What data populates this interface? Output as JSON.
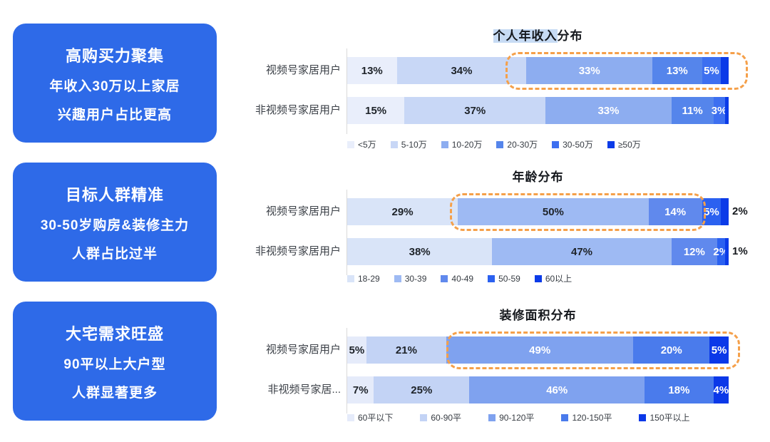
{
  "sidebar": {
    "accent_color": "#2E6AE8",
    "cards": [
      {
        "title": "高购买力聚集",
        "line1": "年收入30万以上家居",
        "line2": "兴趣用户占比更高"
      },
      {
        "title": "目标人群精准",
        "line1": "30-50岁购房&装修主力",
        "line2": "人群占比过半"
      },
      {
        "title": "大宅需求旺盛",
        "line1": "90平以上大户型",
        "line2": "人群显著更多"
      }
    ]
  },
  "chart_data": [
    {
      "type": "bar",
      "orientation": "horizontal",
      "stacked": true,
      "title": "个人年收入分布",
      "title_selection_highlight": "个人年收入",
      "xlim": [
        0,
        100
      ],
      "unit": "%",
      "legend_position": "bottom-left",
      "legend": [
        "<5万",
        "5-10万",
        "10-20万",
        "20-30万",
        "30-50万",
        "≥50万"
      ],
      "colors": [
        "#E9EEFB",
        "#C8D7F6",
        "#8DADF0",
        "#5585EB",
        "#3D6FF0",
        "#0B3BE8"
      ],
      "categories": [
        "视频号家居用户",
        "非视频号家居用户"
      ],
      "series": [
        {
          "name": "视频号家居用户",
          "values": [
            13,
            34,
            33,
            13,
            5,
            2
          ],
          "labels": [
            "13%",
            "34%",
            "33%",
            "13%",
            "5%",
            ""
          ],
          "label_styles": [
            "dark",
            "dark",
            "light",
            "light",
            "light",
            "none"
          ]
        },
        {
          "name": "非视频号家居用户",
          "values": [
            15,
            37,
            33,
            11,
            3,
            1
          ],
          "labels": [
            "15%",
            "37%",
            "33%",
            "11%",
            "3%",
            ""
          ],
          "label_styles": [
            "dark",
            "dark",
            "light",
            "light",
            "light",
            "none"
          ]
        }
      ],
      "highlight_box": {
        "start_pct": 41.5,
        "end_pct": 105,
        "color": "#F5A04A"
      }
    },
    {
      "type": "bar",
      "orientation": "horizontal",
      "stacked": true,
      "title": "年龄分布",
      "xlim": [
        0,
        100
      ],
      "unit": "%",
      "legend_position": "bottom-left",
      "legend": [
        "18-29",
        "30-39",
        "40-49",
        "50-59",
        "60以上"
      ],
      "colors": [
        "#D9E4F8",
        "#9EBAF3",
        "#6089ED",
        "#2B61F0",
        "#0B3BE8"
      ],
      "categories": [
        "视频号家居用户",
        "非视频号家居用户"
      ],
      "series": [
        {
          "name": "视频号家居用户",
          "values": [
            29,
            50,
            14,
            5,
            2
          ],
          "labels": [
            "29%",
            "50%",
            "14%",
            "5%",
            "2%"
          ],
          "label_styles": [
            "dark",
            "dark",
            "light",
            "light",
            "outside"
          ]
        },
        {
          "name": "非视频号家居用户",
          "values": [
            38,
            47,
            12,
            2,
            1
          ],
          "labels": [
            "38%",
            "47%",
            "12%",
            "2%",
            "1%"
          ],
          "label_styles": [
            "dark",
            "dark",
            "light",
            "light",
            "outside"
          ]
        }
      ],
      "highlight_box": {
        "start_pct": 27,
        "end_pct": 94,
        "color": "#F5A04A"
      }
    },
    {
      "type": "bar",
      "orientation": "horizontal",
      "stacked": true,
      "title": "装修面积分布",
      "xlim": [
        0,
        100
      ],
      "unit": "%",
      "legend_position": "bottom-left",
      "legend": [
        "60平以下",
        "60-90平",
        "90-120平",
        "120-150平",
        "150平以上"
      ],
      "colors": [
        "#E5EBFA",
        "#C3D3F5",
        "#7FA2EF",
        "#4A7BEC",
        "#0B38E8"
      ],
      "categories": [
        "视频号家居用户",
        "非视频号家居..."
      ],
      "series": [
        {
          "name": "视频号家居用户",
          "values": [
            5,
            21,
            49,
            20,
            5
          ],
          "labels": [
            "5%",
            "21%",
            "49%",
            "20%",
            "5%"
          ],
          "label_styles": [
            "dark",
            "dark",
            "light",
            "light",
            "light"
          ]
        },
        {
          "name": "非视频号家居...",
          "values": [
            7,
            25,
            46,
            18,
            4
          ],
          "labels": [
            "7%",
            "25%",
            "46%",
            "18%",
            "4%"
          ],
          "label_styles": [
            "dark",
            "dark",
            "light",
            "light",
            "light"
          ]
        }
      ],
      "highlight_box": {
        "start_pct": 26,
        "end_pct": 103,
        "color": "#F5A04A"
      }
    }
  ]
}
